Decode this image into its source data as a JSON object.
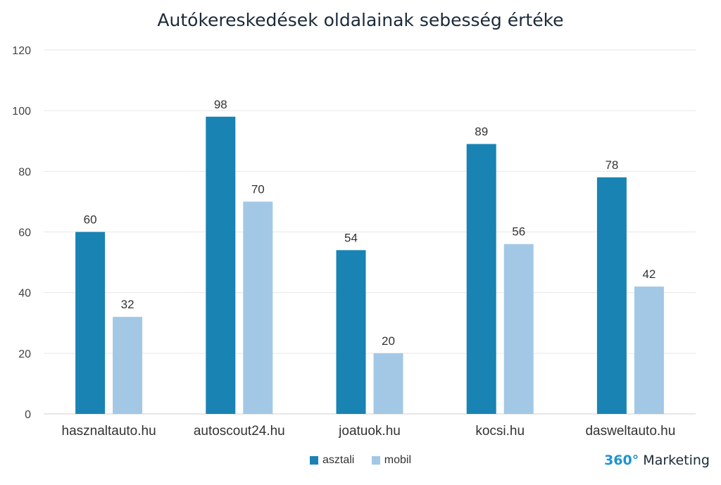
{
  "chart_data": {
    "type": "bar",
    "title": "Autókereskedések oldalainak sebesség értéke",
    "categories": [
      "hasznaltauto.hu",
      "autoscout24.hu",
      "joatuok.hu",
      "kocsi.hu",
      "dasweltauto.hu"
    ],
    "series": [
      {
        "name": "asztali",
        "values": [
          60,
          98,
          54,
          89,
          78
        ],
        "color": "#1983b4"
      },
      {
        "name": "mobil",
        "values": [
          32,
          70,
          20,
          56,
          42
        ],
        "color": "#a3c8e6"
      }
    ],
    "ylim": [
      0,
      120
    ],
    "yticks": [
      0,
      20,
      40,
      60,
      80,
      100,
      120
    ],
    "xlabel": "",
    "ylabel": "",
    "grid": true,
    "legend_position": "bottom"
  },
  "brand": {
    "number": "360°",
    "text": "Marketing"
  }
}
